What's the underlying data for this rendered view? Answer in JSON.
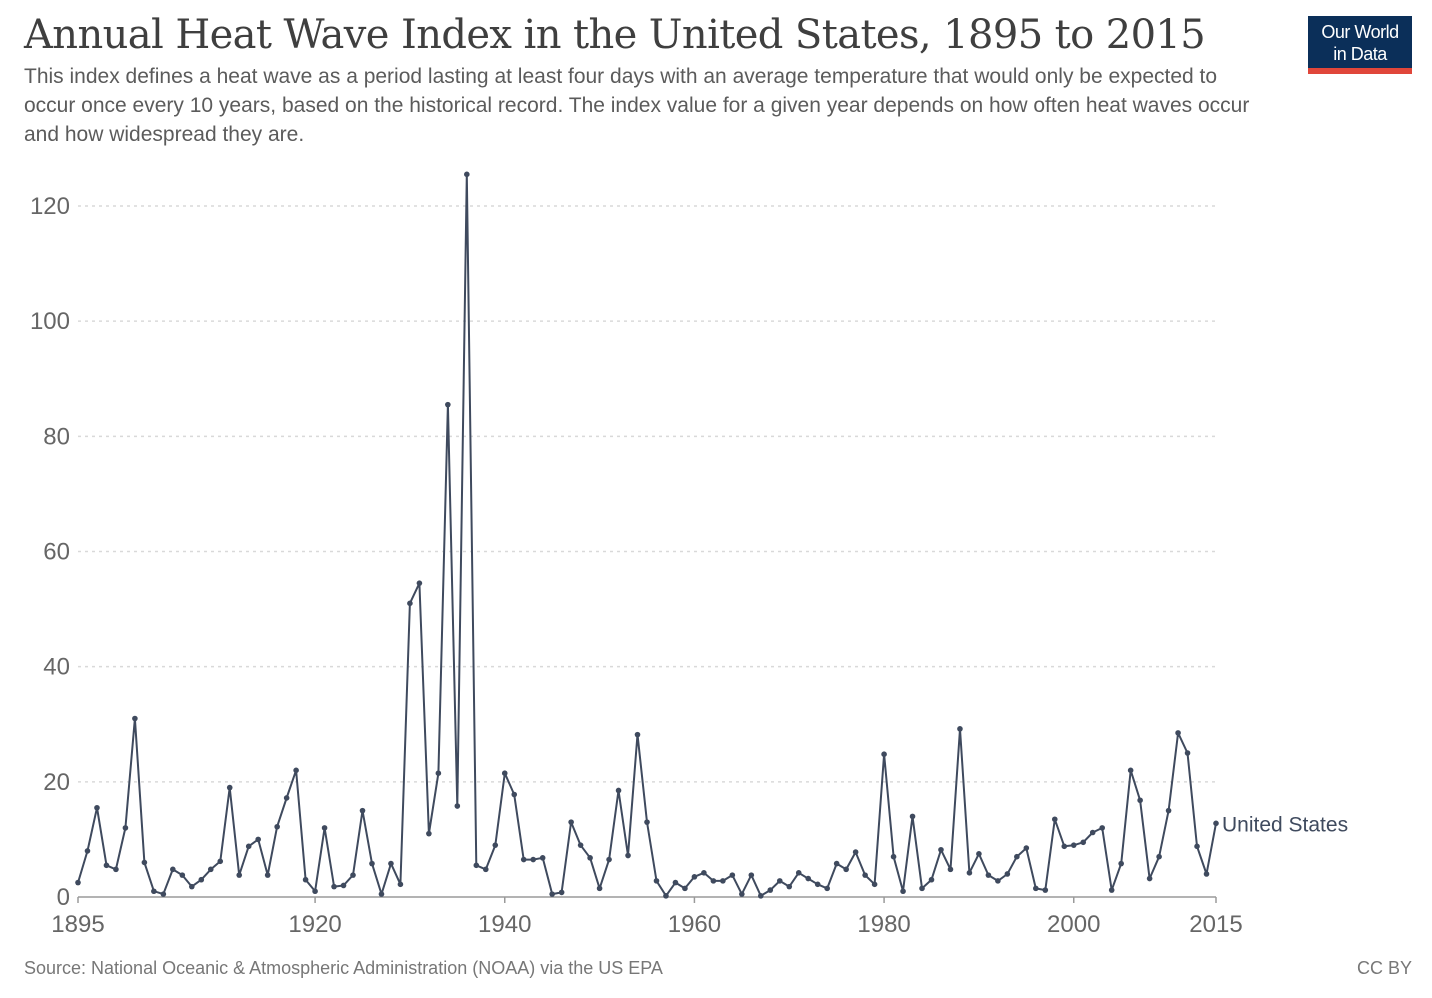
{
  "header": {
    "title": "Annual Heat Wave Index in the United States, 1895 to 2015",
    "subtitle": "This index defines a heat wave as a period lasting at least four days with an average temperature that would only be expected to occur once every 10 years, based on the historical record. The index value for a given year depends on how often heat waves occur and how widespread they are."
  },
  "logo": {
    "line1": "Our World",
    "line2": "in Data"
  },
  "footer": {
    "source": "Source: National Oceanic & Atmospheric Administration (NOAA) via the US EPA",
    "license": "CC BY"
  },
  "colors": {
    "line": "#3f4a5e",
    "grid": "#d9d9d9",
    "axis": "#666666",
    "logo_bg": "#0b2f59",
    "logo_accent": "#e0463a"
  },
  "chart_data": {
    "type": "line",
    "title": "Annual Heat Wave Index in the United States, 1895 to 2015",
    "xlabel": "",
    "ylabel": "",
    "xlim": [
      1895,
      2015
    ],
    "ylim": [
      0,
      125
    ],
    "x_ticks": [
      "1895",
      "1920",
      "1940",
      "1960",
      "1980",
      "2000",
      "2015"
    ],
    "y_ticks": [
      "0",
      "20",
      "40",
      "60",
      "80",
      "100",
      "120"
    ],
    "grid": "horizontal dotted",
    "legend": "inline label at end of line",
    "series": [
      {
        "name": "United States",
        "x": [
          1895,
          1896,
          1897,
          1898,
          1899,
          1900,
          1901,
          1902,
          1903,
          1904,
          1905,
          1906,
          1907,
          1908,
          1909,
          1910,
          1911,
          1912,
          1913,
          1914,
          1915,
          1916,
          1917,
          1918,
          1919,
          1920,
          1921,
          1922,
          1923,
          1924,
          1925,
          1926,
          1927,
          1928,
          1929,
          1930,
          1931,
          1932,
          1933,
          1934,
          1935,
          1936,
          1937,
          1938,
          1939,
          1940,
          1941,
          1942,
          1943,
          1944,
          1945,
          1946,
          1947,
          1948,
          1949,
          1950,
          1951,
          1952,
          1953,
          1954,
          1955,
          1956,
          1957,
          1958,
          1959,
          1960,
          1961,
          1962,
          1963,
          1964,
          1965,
          1966,
          1967,
          1968,
          1969,
          1970,
          1971,
          1972,
          1973,
          1974,
          1975,
          1976,
          1977,
          1978,
          1979,
          1980,
          1981,
          1982,
          1983,
          1984,
          1985,
          1986,
          1987,
          1988,
          1989,
          1990,
          1991,
          1992,
          1993,
          1994,
          1995,
          1996,
          1997,
          1998,
          1999,
          2000,
          2001,
          2002,
          2003,
          2004,
          2005,
          2006,
          2007,
          2008,
          2009,
          2010,
          2011,
          2012,
          2013,
          2014,
          2015
        ],
        "values": [
          2.5,
          8,
          15.5,
          5.5,
          4.8,
          12,
          31,
          6,
          1,
          0.5,
          4.8,
          3.8,
          1.8,
          3,
          4.8,
          6.2,
          19,
          3.8,
          8.8,
          10,
          3.8,
          12.2,
          17.2,
          22,
          3,
          1,
          12,
          1.8,
          2,
          3.8,
          15,
          5.8,
          0.5,
          5.8,
          2.2,
          51,
          54.5,
          11,
          21.5,
          85.5,
          15.8,
          125.5,
          5.5,
          4.8,
          9,
          21.5,
          17.8,
          6.5,
          6.5,
          6.8,
          0.5,
          0.8,
          13,
          9,
          6.8,
          1.5,
          6.5,
          18.5,
          7.2,
          28.2,
          13,
          2.8,
          0.2,
          2.5,
          1.5,
          3.5,
          4.2,
          2.8,
          2.8,
          3.8,
          0.5,
          3.8,
          0.2,
          1.2,
          2.8,
          1.8,
          4.2,
          3.2,
          2.2,
          1.5,
          5.8,
          4.8,
          7.8,
          3.8,
          2.2,
          24.8,
          7,
          1,
          14,
          1.5,
          3,
          8.2,
          4.8,
          29.2,
          4.2,
          7.5,
          3.8,
          2.8,
          4,
          7,
          8.5,
          1.5,
          1.2,
          13.5,
          8.8,
          9,
          9.5,
          11.2,
          12,
          1.2,
          5.8,
          22,
          16.8,
          3.2,
          7,
          15,
          28.5,
          25,
          8.8,
          4,
          12.8
        ]
      }
    ]
  }
}
